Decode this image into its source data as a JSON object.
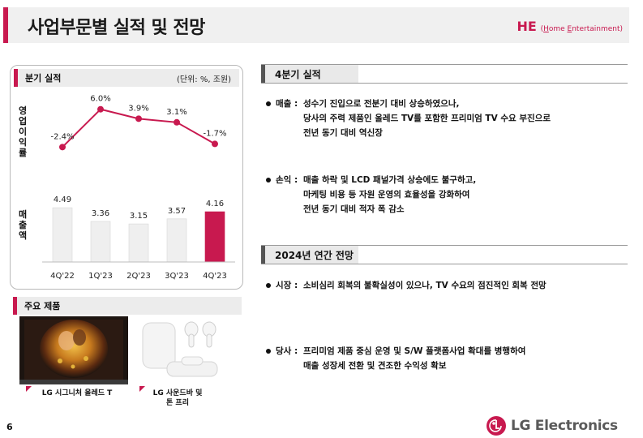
{
  "header": {
    "title": "사업부문별 실적 및 전망",
    "division_code": "HE",
    "division_full_prefix": "(",
    "division_full_h": "H",
    "division_full_mid1": "ome ",
    "division_full_e": "E",
    "division_full_rest": "ntertainment)"
  },
  "performance_panel": {
    "title": "분기 실적",
    "unit": "(단위: %, 조원)",
    "op_margin_label": "영업이익률",
    "sales_label": "매출액"
  },
  "chart_data": {
    "type": "bar",
    "categories": [
      "4Q'22",
      "1Q'23",
      "2Q'23",
      "3Q'23",
      "4Q'23"
    ],
    "series": [
      {
        "name": "영업이익률",
        "type": "line",
        "values": [
          -2.4,
          6.0,
          3.9,
          3.1,
          -1.7
        ],
        "labels": [
          "-2.4%",
          "6.0%",
          "3.9%",
          "3.1%",
          "-1.7%"
        ]
      },
      {
        "name": "매출액",
        "type": "bar",
        "values": [
          4.49,
          3.36,
          3.15,
          3.57,
          4.16
        ],
        "labels": [
          "4.49",
          "3.36",
          "3.15",
          "3.57",
          "4.16"
        ]
      }
    ],
    "highlight_color": "#c8194f",
    "bar_color": "#efefef"
  },
  "products": {
    "title": "주요 제품",
    "items": [
      {
        "label": "LG 시그니처 올레드 T"
      },
      {
        "label_line1": "LG 사운드바 및",
        "label_line2": "톤 프리"
      }
    ]
  },
  "q4_section": {
    "title": "4분기 실적",
    "bullets": [
      {
        "key": "매출 :",
        "lines": [
          "성수기 진입으로 전분기 대비 상승하였으나,",
          "당사의 주력 제품인 올레드 TV를 포함한 프리미엄 TV 수요 부진으로",
          "전년 동기 대비 역신장"
        ]
      },
      {
        "key": "손익 :",
        "lines": [
          "매출 하락 및 LCD 패널가격 상승에도 불구하고,",
          "마케팅 비용 등 자원 운영의 효율성을 강화하여",
          "전년 동기 대비 적자 폭 감소"
        ]
      }
    ]
  },
  "outlook_section": {
    "title": "2024년 연간 전망",
    "bullets": [
      {
        "key": "시장 :",
        "lines": [
          "소비심리 회복의 불확실성이 있으나, TV 수요의 점진적인 회복 전망"
        ]
      },
      {
        "key": "당사 :",
        "lines": [
          "프리미엄 제품 중심 운영 및 S/W 플랫폼사업 확대를 병행하여",
          "매출 성장세 전환 및 견조한 수익성 확보"
        ]
      }
    ]
  },
  "footer": {
    "page_number": "6",
    "logo_text": "LG Electronics"
  },
  "colors": {
    "accent": "#c8194f",
    "header_bg": "#f0f0f0",
    "logo_gray": "#5a5a5a"
  }
}
